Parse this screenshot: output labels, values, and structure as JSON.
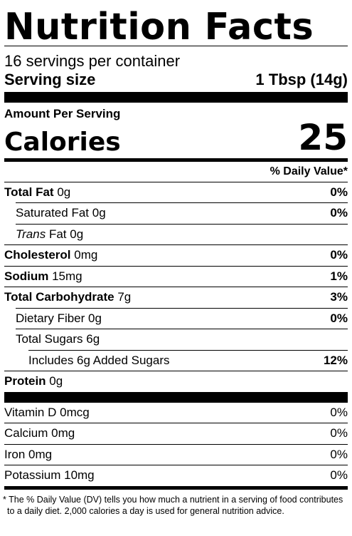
{
  "title": "Nutrition Facts",
  "servings_per_container": "16 servings per container",
  "serving_size": {
    "label": "Serving size",
    "value": "1 Tbsp (14g)"
  },
  "amount_per_serving": "Amount Per Serving",
  "calories": {
    "label": "Calories",
    "value": "25"
  },
  "daily_value_header": "% Daily Value*",
  "nutrients": [
    {
      "name": "Total Fat",
      "amount": "0g",
      "dv": "0%"
    },
    {
      "name": "Saturated Fat",
      "amount": "0g",
      "dv": "0%"
    },
    {
      "name": "Trans",
      "suffix": "Fat",
      "amount": "0g",
      "dv": ""
    },
    {
      "name": "Cholesterol",
      "amount": "0mg",
      "dv": "0%"
    },
    {
      "name": "Sodium",
      "amount": "15mg",
      "dv": "1%"
    },
    {
      "name": "Total Carbohydrate",
      "amount": "7g",
      "dv": "3%"
    },
    {
      "name": "Dietary Fiber",
      "amount": "0g",
      "dv": "0%"
    },
    {
      "name": "Total Sugars",
      "amount": "6g",
      "dv": ""
    },
    {
      "name": "Includes 6g Added Sugars",
      "dv": "12%"
    },
    {
      "name": "Protein",
      "amount": "0g"
    }
  ],
  "vitamins": [
    {
      "name": "Vitamin D",
      "amount": "0mcg",
      "dv": "0%"
    },
    {
      "name": "Calcium",
      "amount": "0mg",
      "dv": "0%"
    },
    {
      "name": "Iron",
      "amount": "0mg",
      "dv": "0%"
    },
    {
      "name": "Potassium",
      "amount": "10mg",
      "dv": "0%"
    }
  ],
  "footnote": "* The % Daily Value (DV) tells you how much a nutrient in a serving of food contributes to a daily diet. 2,000 calories a day is used for general nutrition advice."
}
